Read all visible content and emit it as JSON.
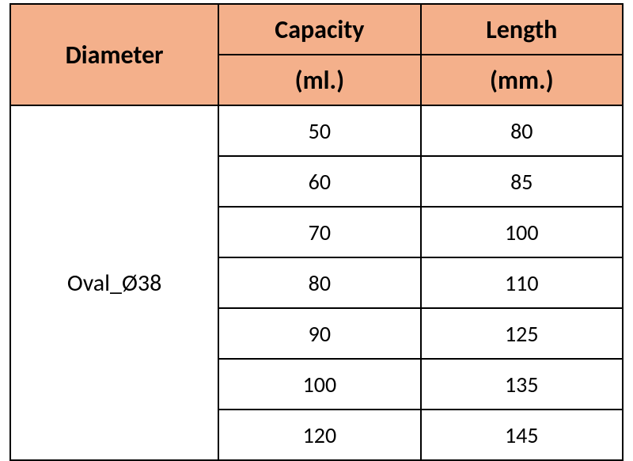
{
  "table": {
    "type": "table",
    "header_bg": "#f4b08b",
    "border_color": "#000000",
    "text_color": "#000000",
    "header_fontsize": 32,
    "cell_fontsize": 28,
    "columns": [
      {
        "label": "Diameter",
        "unit": null,
        "width_pct": 34,
        "align": "center"
      },
      {
        "label": "Capacity",
        "unit": "(ml.)",
        "width_pct": 33,
        "align": "center"
      },
      {
        "label": "Length",
        "unit": "(mm.)",
        "width_pct": 33,
        "align": "center"
      }
    ],
    "diameter_label": "Oval_Ø38",
    "rows": [
      {
        "capacity": "50",
        "length": "80"
      },
      {
        "capacity": "60",
        "length": "85"
      },
      {
        "capacity": "70",
        "length": "100"
      },
      {
        "capacity": "80",
        "length": "110"
      },
      {
        "capacity": "90",
        "length": "125"
      },
      {
        "capacity": "100",
        "length": "135"
      },
      {
        "capacity": "120",
        "length": "145"
      }
    ]
  }
}
